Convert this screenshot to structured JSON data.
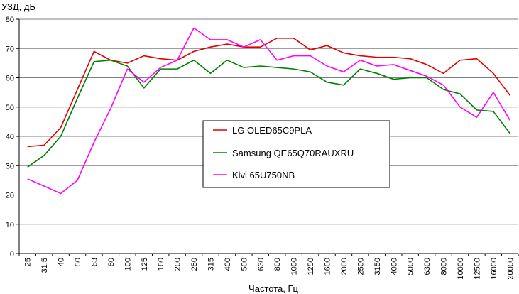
{
  "chart_data": {
    "type": "line",
    "ylabel": "УЗД, дБ",
    "xlabel": "Частота, Гц",
    "ylim": [
      0,
      80
    ],
    "yticks": [
      0,
      10,
      20,
      30,
      40,
      50,
      60,
      70,
      80
    ],
    "grid": "horizontal",
    "legend_position": "center",
    "categories": [
      "25",
      "31.5",
      "40",
      "50",
      "63",
      "80",
      "100",
      "125",
      "160",
      "200",
      "250",
      "315",
      "400",
      "500",
      "630",
      "800",
      "1000",
      "1250",
      "1600",
      "2000",
      "2500",
      "3150",
      "4000",
      "5000",
      "6300",
      "8000",
      "10000",
      "12500",
      "16000",
      "20000"
    ],
    "series": [
      {
        "name": "LG OLED65C9PLA",
        "color": "#e00000",
        "values": [
          36.5,
          37,
          43,
          56,
          69,
          66,
          65,
          67.5,
          66.5,
          66,
          69,
          70.5,
          71.5,
          70.5,
          70.5,
          73.5,
          73.5,
          69.5,
          71,
          68.5,
          67.5,
          67,
          67,
          66.5,
          64.5,
          61.5,
          66,
          66.5,
          61.5,
          54
        ]
      },
      {
        "name": "Samsung QE65Q70RAUXRU",
        "color": "#008000",
        "values": [
          29.5,
          33.5,
          40,
          53,
          65.5,
          66,
          64,
          56.5,
          63,
          63,
          66,
          61.5,
          66,
          63.5,
          64,
          63.5,
          63,
          62,
          58.5,
          57.5,
          63,
          61.5,
          59.5,
          60,
          60,
          56,
          54.5,
          49,
          48.5,
          41
        ]
      },
      {
        "name": "Kivi 65U750NB",
        "color": "#ff00ff",
        "values": [
          25.5,
          23,
          20.5,
          25,
          38,
          49.5,
          63,
          58.5,
          63.5,
          66,
          77,
          73,
          73,
          70.5,
          73,
          66,
          67.5,
          67.5,
          64,
          62,
          66,
          64,
          64.5,
          62.5,
          60.5,
          57.5,
          50,
          46.5,
          55,
          45.5
        ]
      }
    ]
  }
}
